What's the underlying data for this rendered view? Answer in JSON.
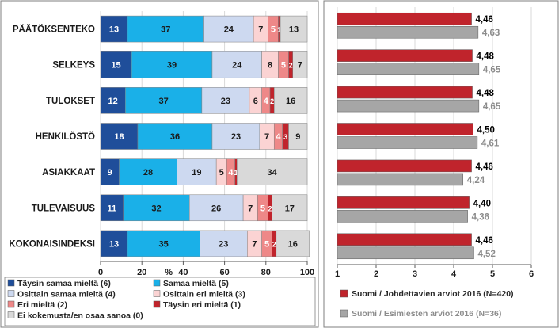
{
  "chart_data": [
    {
      "type": "bar",
      "orientation": "horizontal",
      "stacked": true,
      "categories": [
        "PÄÄTÖKSENTEKO",
        "SELKEYS",
        "TULOKSET",
        "HENKILÖSTÖ",
        "ASIAKKAAT",
        "TULEVAISUUS",
        "KOKONAISINDEKSI"
      ],
      "series": [
        {
          "name": "Täysin samaa mieltä (6)",
          "color": "#1f4e9a",
          "label_color": "#ffffff",
          "values": [
            13,
            15,
            12,
            18,
            9,
            11,
            13
          ]
        },
        {
          "name": "Samaa mieltä (5)",
          "color": "#1ab0e8",
          "label_color": "#1a1a1a",
          "values": [
            37,
            39,
            37,
            36,
            28,
            32,
            35
          ]
        },
        {
          "name": "Osittain samaa mieltä (4)",
          "color": "#cdd9f0",
          "label_color": "#1a1a1a",
          "values": [
            24,
            24,
            23,
            23,
            19,
            26,
            23
          ]
        },
        {
          "name": "Osittain eri mieltä (3)",
          "color": "#fbd3d3",
          "label_color": "#1a1a1a",
          "values": [
            7,
            8,
            6,
            7,
            5,
            7,
            7
          ]
        },
        {
          "name": "Eri mieltä (2)",
          "color": "#ee8888",
          "label_color": "#ffffff",
          "values": [
            5,
            5,
            4,
            4,
            4,
            5,
            5
          ]
        },
        {
          "name": "Täysin eri mieltä (1)",
          "color": "#c0242c",
          "label_color": "#ffffff",
          "values": [
            1,
            2,
            2,
            3,
            1,
            2,
            2
          ]
        },
        {
          "name": "Ei kokemusta/en osaa sanoa (0)",
          "color": "#d9d9d9",
          "label_color": "#1a1a1a",
          "values": [
            13,
            7,
            16,
            9,
            34,
            17,
            16
          ]
        }
      ],
      "value_labels": {
        "PÄÄTÖKSENTEKO": [
          "13",
          "37",
          "24",
          "7",
          "5",
          "1",
          "13"
        ],
        "SELKEYS": [
          "15",
          "39",
          "24",
          "8",
          "5",
          "2",
          "7"
        ],
        "TULOKSET": [
          "12",
          "37",
          "23",
          "6",
          "4",
          "2",
          "16"
        ],
        "HENKILÖSTÖ": [
          "18",
          "36",
          "23",
          "7",
          "4",
          "3",
          "9"
        ],
        "ASIAKKAAT": [
          "9",
          "28",
          "19",
          "5",
          "4",
          "1",
          "34"
        ],
        "TULEVAISUUS": [
          "11",
          "32",
          "26",
          "7",
          "5",
          "2",
          "17"
        ],
        "KOKONAISINDEKSI": [
          "13",
          "35",
          "23",
          "7",
          "5",
          "2",
          "16"
        ]
      },
      "xlim": [
        0,
        100
      ],
      "xticks": [
        "0",
        "20",
        "40",
        "60",
        "80",
        "100"
      ],
      "xunit": "%",
      "legend_position": "bottom"
    },
    {
      "type": "bar",
      "orientation": "horizontal",
      "categories": [
        "PÄÄTÖKSENTEKO",
        "SELKEYS",
        "TULOKSET",
        "HENKILÖSTÖ",
        "ASIAKKAAT",
        "TULEVAISUUS",
        "KOKONAISINDEKSI"
      ],
      "series": [
        {
          "name": "Suomi / Johdettavien arviot 2016 (N=420)",
          "color": "#c0242c",
          "label_color": "#000000",
          "values": [
            4.46,
            4.48,
            4.48,
            4.5,
            4.46,
            4.4,
            4.46
          ],
          "labels": [
            "4,46",
            "4,48",
            "4,48",
            "4,50",
            "4,46",
            "4,40",
            "4,46"
          ]
        },
        {
          "name": "Suomi / Esimiesten arviot 2016 (N=36)",
          "color": "#a6a6a6",
          "label_color": "#8c8c8c",
          "values": [
            4.63,
            4.65,
            4.65,
            4.61,
            4.24,
            4.36,
            4.52
          ],
          "labels": [
            "4,63",
            "4,65",
            "4,65",
            "4,61",
            "4,24",
            "4,36",
            "4,52"
          ]
        }
      ],
      "xlim": [
        1,
        6
      ],
      "xticks": [
        "1",
        "2",
        "3",
        "4",
        "5",
        "6"
      ],
      "legend_position": "bottom"
    }
  ]
}
